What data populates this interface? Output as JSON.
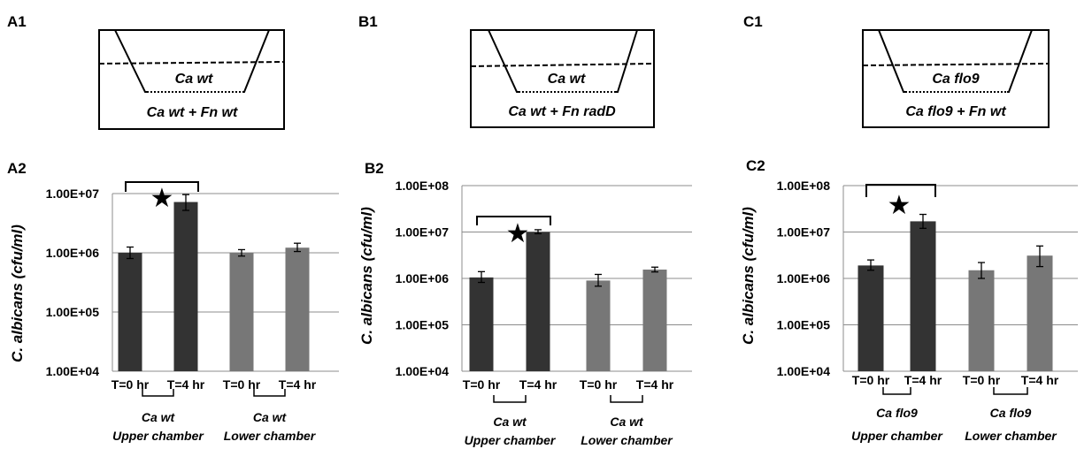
{
  "panels": [
    {
      "top_label": "A1",
      "bottom_label": "A2",
      "diagram": {
        "insert_text": "Ca wt",
        "chamber_text": "Ca wt + Fn wt"
      },
      "chart_data": {
        "type": "bar",
        "yscale": "log",
        "ylim": [
          10000,
          10000000
        ],
        "yticks": [
          "1.00E+04",
          "1.00E+05",
          "1.00E+06",
          "1.00E+07"
        ],
        "ylabel": "C. albicans (cfu/ml)",
        "categories": [
          "T=0 hr",
          "T=4 hr",
          "T=0 hr",
          "T=4 hr"
        ],
        "values": [
          1000000,
          7200000,
          1000000,
          1220000
        ],
        "error_low": [
          800000,
          5200000,
          880000,
          1050000
        ],
        "error_high": [
          1250000,
          9600000,
          1130000,
          1450000
        ],
        "bar_colors": [
          "#333333",
          "#333333",
          "#777777",
          "#777777"
        ],
        "groups": [
          {
            "line1": "Ca wt",
            "line2": "Upper chamber"
          },
          {
            "line1": "Ca wt",
            "line2": "Lower chamber"
          }
        ],
        "significance": {
          "from": 0,
          "to": 1,
          "marker": "★"
        }
      }
    },
    {
      "top_label": "B1",
      "bottom_label": "B2",
      "diagram": {
        "insert_text": "Ca wt",
        "chamber_text": "Ca wt + Fn radD"
      },
      "chart_data": {
        "type": "bar",
        "yscale": "log",
        "ylim": [
          10000,
          100000000
        ],
        "yticks": [
          "1.00E+04",
          "1.00E+05",
          "1.00E+06",
          "1.00E+07",
          "1.00E+08"
        ],
        "ylabel": "C. albicans (cfu/ml)",
        "categories": [
          "T=0 hr",
          "T=4 hr",
          "T=0 hr",
          "T=4 hr"
        ],
        "values": [
          1050000,
          10000000,
          900000,
          1550000
        ],
        "error_low": [
          820000,
          9200000,
          680000,
          1380000
        ],
        "error_high": [
          1400000,
          11200000,
          1220000,
          1750000
        ],
        "bar_colors": [
          "#333333",
          "#333333",
          "#777777",
          "#777777"
        ],
        "groups": [
          {
            "line1": "Ca wt",
            "line2": "Upper chamber"
          },
          {
            "line1": "Ca wt",
            "line2": "Lower chamber"
          }
        ],
        "significance": {
          "from": 0,
          "to": 1,
          "marker": "★"
        }
      }
    },
    {
      "top_label": "C1",
      "bottom_label": "C2",
      "diagram": {
        "insert_text": "Ca flo9",
        "chamber_text": "Ca flo9 + Fn wt"
      },
      "chart_data": {
        "type": "bar",
        "yscale": "log",
        "ylim": [
          10000,
          100000000
        ],
        "yticks": [
          "1.00E+04",
          "1.00E+05",
          "1.00E+06",
          "1.00E+07",
          "1.00E+08"
        ],
        "ylabel": "C. albicans (cfu/ml)",
        "categories": [
          "T=0 hr",
          "T=4 hr",
          "T=0 hr",
          "T=4 hr"
        ],
        "values": [
          1900000,
          17000000,
          1500000,
          3100000
        ],
        "error_low": [
          1500000,
          12000000,
          1000000,
          1800000
        ],
        "error_high": [
          2500000,
          24000000,
          2200000,
          5000000
        ],
        "bar_colors": [
          "#333333",
          "#333333",
          "#777777",
          "#777777"
        ],
        "groups": [
          {
            "line1": "Ca flo9",
            "line2": "Upper chamber"
          },
          {
            "line1": "Ca flo9",
            "line2": "Lower chamber"
          }
        ],
        "significance": {
          "from": 0,
          "to": 1,
          "marker": "★"
        }
      }
    }
  ]
}
